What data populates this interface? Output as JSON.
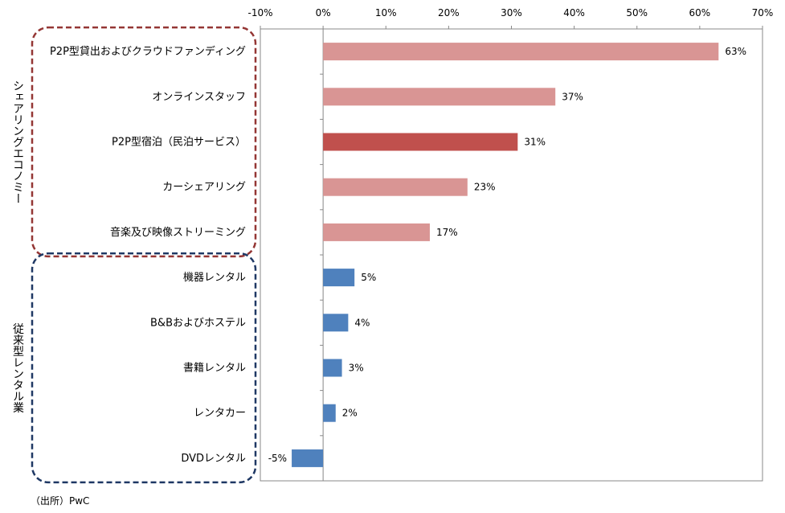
{
  "chart_data": {
    "type": "bar",
    "orientation": "horizontal",
    "categories": [
      "P2P型貸出およびクラウドファンディング",
      "オンラインスタッフ",
      "P2P型宿泊（民泊サービス）",
      "カーシェアリング",
      "音楽及び映像ストリーミング",
      "機器レンタル",
      "B&Bおよびホステル",
      "書籍レンタル",
      "レンタカー",
      "DVDレンタル"
    ],
    "values": [
      63,
      37,
      31,
      23,
      17,
      5,
      4,
      3,
      2,
      -5
    ],
    "data_labels": [
      "63%",
      "37%",
      "31%",
      "23%",
      "17%",
      "5%",
      "4%",
      "3%",
      "2%",
      "-5%"
    ],
    "bar_colors": [
      "#d99594",
      "#d99594",
      "#c0504d",
      "#d99594",
      "#d99594",
      "#4f81bd",
      "#4f81bd",
      "#4f81bd",
      "#4f81bd",
      "#4f81bd"
    ],
    "xlim": [
      -10,
      70
    ],
    "x_ticks": [
      "-10%",
      "0%",
      "10%",
      "20%",
      "30%",
      "40%",
      "50%",
      "60%",
      "70%"
    ],
    "x_axis_position": "top",
    "grid": false,
    "groups": [
      {
        "label": "シェアリングエコノミー",
        "color": "#943634",
        "style": "dashed",
        "categories": [
          0,
          1,
          2,
          3,
          4
        ]
      },
      {
        "label": "従来型レンタル業",
        "color": "#1f3864",
        "style": "dashed",
        "categories": [
          5,
          6,
          7,
          8,
          9
        ]
      }
    ]
  },
  "source": "（出所）PwC"
}
